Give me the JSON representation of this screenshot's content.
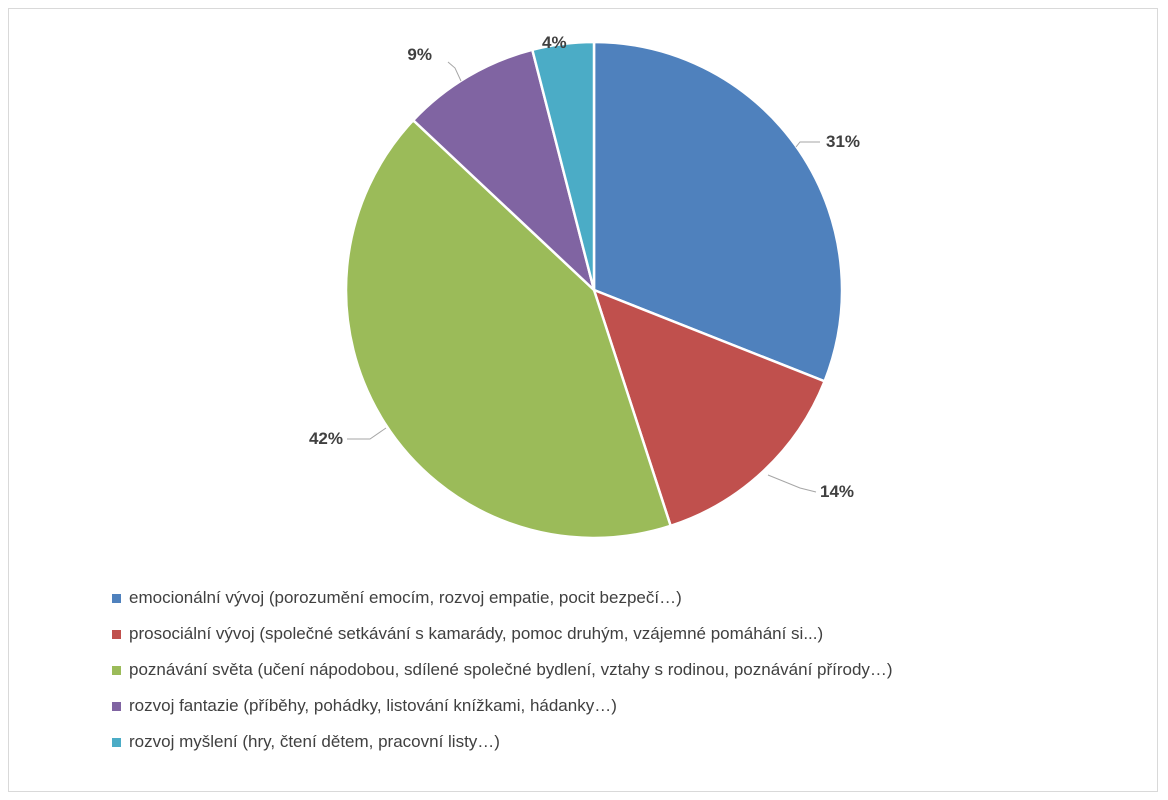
{
  "chart_data": {
    "type": "pie",
    "title": "",
    "start_angle_deg": 0,
    "direction": "clockwise",
    "series": [
      {
        "label": "emocionální vývoj (porozumění emocím, rozvoj empatie, pocit bezpečí…)",
        "value": 31,
        "data_label": "31%",
        "color": "#4F81BD"
      },
      {
        "label": "prosociální vývoj (společné setkávání s kamarády, pomoc druhým, vzájemné pomáhání si...)",
        "value": 14,
        "data_label": "14%",
        "color": "#C0504D"
      },
      {
        "label": "poznávání světa  (učení nápodobou, sdílené společné bydlení, vztahy s rodinou, poznávání přírody…)",
        "value": 42,
        "data_label": "42%",
        "color": "#9BBB59"
      },
      {
        "label": "rozvoj fantazie (příběhy, pohádky, listování knížkami, hádanky…)",
        "value": 9,
        "data_label": "9%",
        "color": "#8064A2"
      },
      {
        "label": "rozvoj myšlení (hry, čtení dětem, pracovní listy…)",
        "value": 4,
        "data_label": "4%",
        "color": "#4BACC6"
      }
    ],
    "legend_position": "bottom-left",
    "data_labels": "outside-with-leader-lines"
  }
}
